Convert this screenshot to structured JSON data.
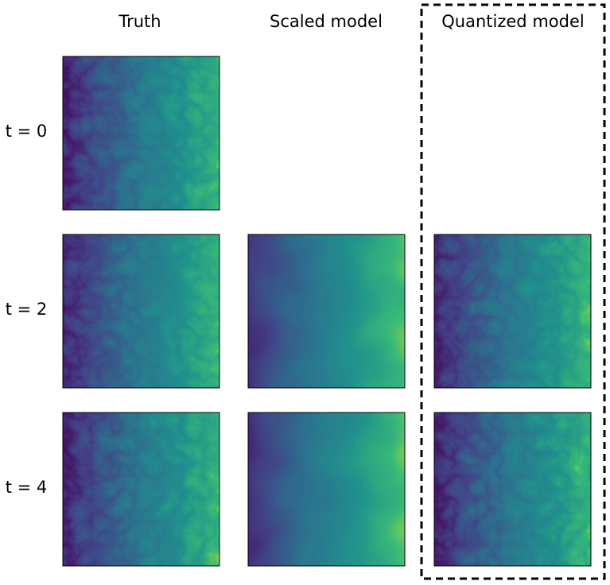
{
  "columns": [
    "Truth",
    "Scaled model",
    "Quantized model"
  ],
  "rows": [
    "t = 0",
    "t = 2",
    "t = 4"
  ]
}
